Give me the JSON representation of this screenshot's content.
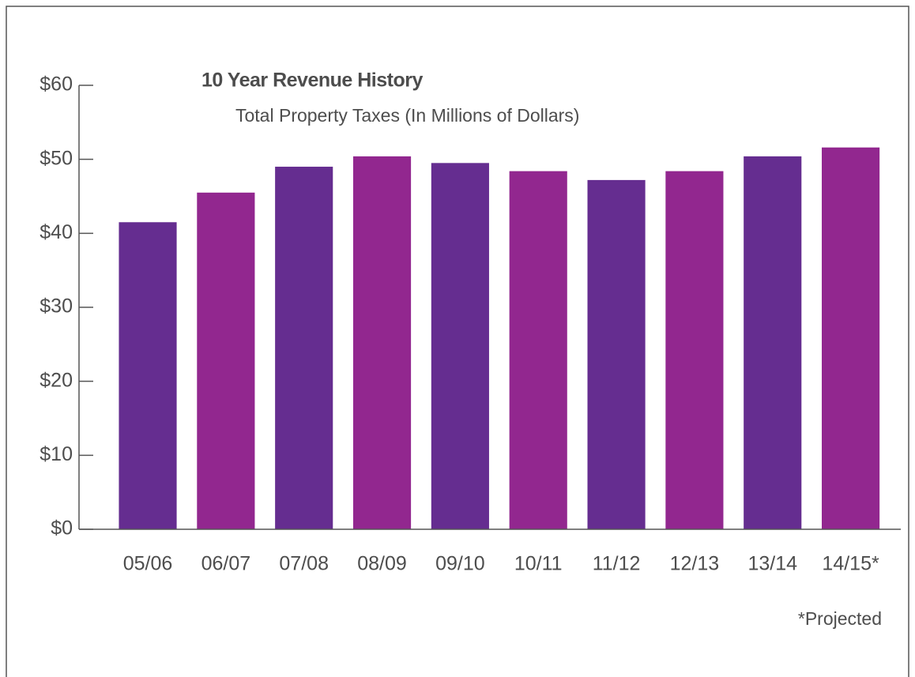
{
  "chart_data": {
    "type": "bar",
    "title": "10 Year Revenue History",
    "subtitle": "Total Property Taxes (In Millions of Dollars)",
    "annotation": "*Projected",
    "categories": [
      "05/06",
      "06/07",
      "07/08",
      "08/09",
      "09/10",
      "10/11",
      "11/12",
      "12/13",
      "13/14",
      "14/15*"
    ],
    "values": [
      41.5,
      45.5,
      49.0,
      50.4,
      49.5,
      48.4,
      47.2,
      48.4,
      50.4,
      51.6
    ],
    "colors": [
      "#652d90",
      "#92278f",
      "#652d90",
      "#92278f",
      "#652d90",
      "#92278f",
      "#652d90",
      "#92278f",
      "#652d90",
      "#92278f"
    ],
    "ylim": [
      0,
      60
    ],
    "yticks": [
      {
        "value": 0,
        "label": "$0"
      },
      {
        "value": 10,
        "label": "$10"
      },
      {
        "value": 20,
        "label": "$20"
      },
      {
        "value": 30,
        "label": "$30"
      },
      {
        "value": 40,
        "label": "$40"
      },
      {
        "value": 50,
        "label": "$50"
      },
      {
        "value": 60,
        "label": "$60"
      }
    ],
    "grid": false
  }
}
